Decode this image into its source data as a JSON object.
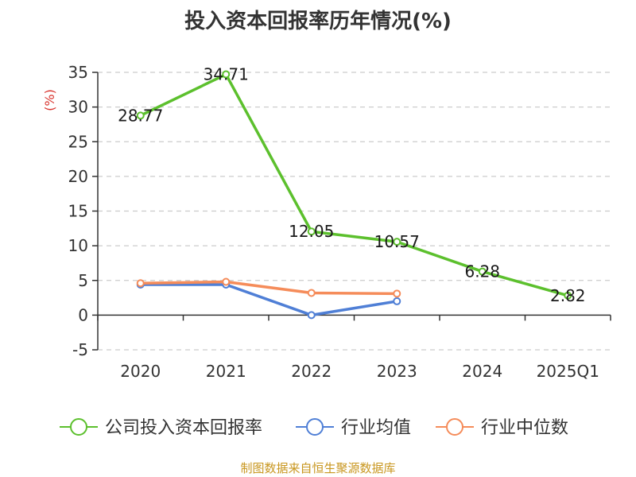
{
  "chart_data": {
    "type": "line",
    "title": "投入资本回报率历年情况(%)",
    "ylabel": "(%)",
    "categories": [
      "2020",
      "2021",
      "2022",
      "2023",
      "2024",
      "2025Q1"
    ],
    "ylim": [
      -5,
      35
    ],
    "yticks": [
      -5,
      0,
      5,
      10,
      15,
      20,
      25,
      30,
      35
    ],
    "grid": true,
    "legend_position": "bottom",
    "series": [
      {
        "name": "公司投入资本回报率",
        "color": "#5cc02d",
        "values": [
          28.77,
          34.71,
          12.05,
          10.57,
          6.28,
          2.82
        ],
        "labels": [
          "28.77",
          "34.71",
          "12.05",
          "10.57",
          "6.28",
          "2.82"
        ]
      },
      {
        "name": "行业均值",
        "color": "#4f7fd6",
        "values": [
          4.4,
          4.4,
          0.0,
          2.0,
          null,
          null
        ]
      },
      {
        "name": "行业中位数",
        "color": "#f58c5a",
        "values": [
          4.6,
          4.8,
          3.2,
          3.1,
          null,
          null
        ]
      }
    ]
  },
  "source_text": "制图数据来自恒生聚源数据库"
}
